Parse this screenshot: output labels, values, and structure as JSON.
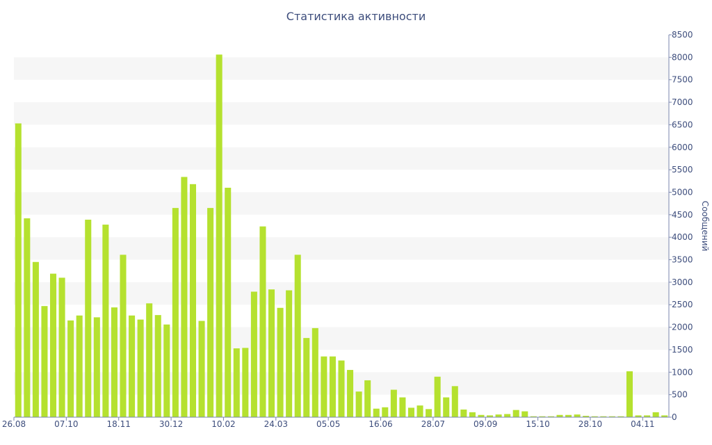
{
  "chart_data": {
    "type": "bar",
    "title": "Статистика активности",
    "ylabel": "Сообщений",
    "xlabel": "",
    "ylim": [
      0,
      8500
    ],
    "y_ticks": [
      0,
      500,
      1000,
      1500,
      2000,
      2500,
      3000,
      3500,
      4000,
      4500,
      5000,
      5500,
      6000,
      6500,
      7000,
      7500,
      8000,
      8500
    ],
    "y_axis_side": "right",
    "x_tick_labels": [
      {
        "label": "26.08",
        "index": 0
      },
      {
        "label": "07.10",
        "index": 6
      },
      {
        "label": "18.11",
        "index": 12
      },
      {
        "label": "30.12",
        "index": 18
      },
      {
        "label": "10.02",
        "index": 24
      },
      {
        "label": "24.03",
        "index": 30
      },
      {
        "label": "05.05",
        "index": 36
      },
      {
        "label": "16.06",
        "index": 42
      },
      {
        "label": "28.07",
        "index": 48
      },
      {
        "label": "09.09",
        "index": 54
      },
      {
        "label": "15.10",
        "index": 60
      },
      {
        "label": "28.10",
        "index": 66
      },
      {
        "label": "04.11",
        "index": 72
      }
    ],
    "values": [
      6530,
      4420,
      3450,
      2470,
      3190,
      3100,
      2150,
      2260,
      4390,
      2220,
      4280,
      2440,
      3610,
      2260,
      2170,
      2530,
      2270,
      2060,
      4650,
      5340,
      5180,
      2140,
      4650,
      8060,
      5100,
      1530,
      1540,
      2790,
      4240,
      2840,
      2430,
      2820,
      3610,
      1760,
      1980,
      1350,
      1350,
      1260,
      1050,
      570,
      820,
      190,
      220,
      610,
      440,
      210,
      260,
      180,
      900,
      440,
      690,
      170,
      110,
      50,
      40,
      60,
      70,
      160,
      130,
      20,
      20,
      20,
      50,
      50,
      60,
      30,
      20,
      20,
      20,
      20,
      1020,
      40,
      40,
      110,
      40
    ],
    "bar_color": "#b5e12f",
    "band_color": "#f6f6f6",
    "grid": "alternating bands",
    "legend": "none"
  }
}
